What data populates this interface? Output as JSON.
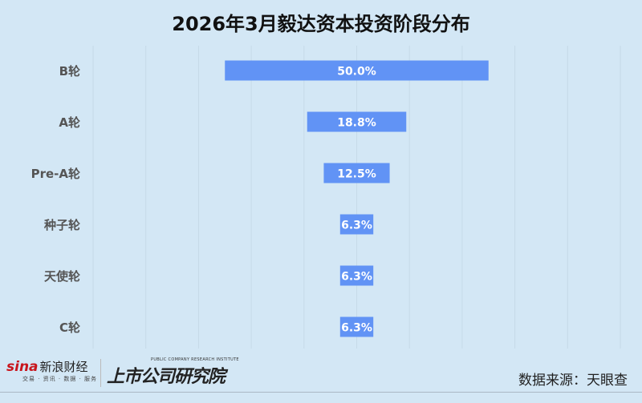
{
  "title": "2026年3月毅达资本投资阶段分布",
  "chart_data": {
    "type": "bar",
    "orientation": "horizontal-centered-funnel",
    "categories": [
      "B轮",
      "A轮",
      "Pre-A轮",
      "种子轮",
      "天使轮",
      "C轮"
    ],
    "values": [
      50.0,
      18.8,
      12.5,
      6.3,
      6.3,
      6.3
    ],
    "data_labels": [
      "50.0%",
      "18.8%",
      "12.5%",
      "6.3%",
      "6.3%",
      "6.3%"
    ],
    "unit": "%",
    "xlim": [
      -50,
      50
    ],
    "grid": true,
    "bar_color": "#6193f5",
    "label_color": "#ffffff"
  },
  "footer": {
    "sina_logo": "sina",
    "sina_name": "新浪财经",
    "sina_sub": "交易 · 资讯 · 数据 · 服务",
    "institute_en": "PUBLIC COMPANY RESEARCH INSTITUTE",
    "institute_cn": "上市公司研究院",
    "source": "数据来源：天眼查"
  }
}
